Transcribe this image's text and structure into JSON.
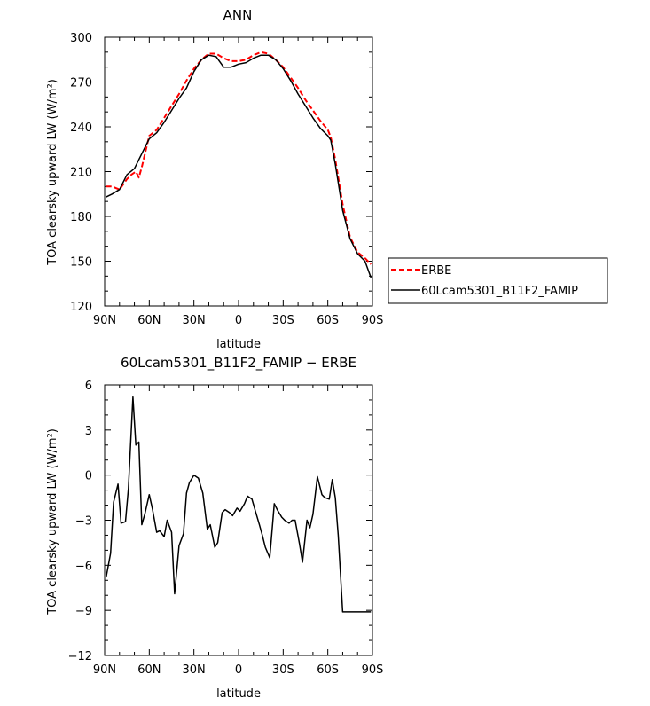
{
  "chart_data": [
    {
      "type": "line",
      "title": "ANN",
      "xlabel": "latitude",
      "ylabel": "TOA clearsky upward LW (W/m²)",
      "xlim": [
        90,
        -90
      ],
      "ylim": [
        120,
        300
      ],
      "xticks": [
        {
          "value": 90,
          "label": "90N"
        },
        {
          "value": 60,
          "label": "60N"
        },
        {
          "value": 30,
          "label": "30N"
        },
        {
          "value": 0,
          "label": "0"
        },
        {
          "value": -30,
          "label": "30S"
        },
        {
          "value": -60,
          "label": "60S"
        },
        {
          "value": -90,
          "label": "90S"
        }
      ],
      "yticks": [
        120,
        150,
        180,
        210,
        240,
        270,
        300
      ],
      "legend_position": "right",
      "series": [
        {
          "name": "ERBE",
          "color": "#ff0000",
          "dash": "dashed",
          "x": [
            89,
            85,
            80,
            75,
            72,
            69,
            67,
            65,
            60,
            55,
            50,
            45,
            40,
            35,
            30,
            25,
            20,
            15,
            10,
            5,
            0,
            -5,
            -10,
            -15,
            -20,
            -25,
            -30,
            -35,
            -40,
            -45,
            -50,
            -55,
            -60,
            -62,
            -65,
            -70,
            -75,
            -80,
            -85,
            -89
          ],
          "y": [
            200,
            200,
            198,
            205,
            208,
            210,
            206,
            213,
            234,
            238,
            246,
            254,
            262,
            271,
            279,
            285,
            289,
            289,
            286,
            284,
            284,
            285,
            288,
            290,
            289,
            285,
            280,
            273,
            266,
            258,
            251,
            244,
            238,
            233,
            218,
            188,
            166,
            156,
            152,
            148
          ]
        },
        {
          "name": "60Lcam5301_B11F2_FAMIP",
          "color": "#000000",
          "dash": "solid",
          "x": [
            89,
            85,
            80,
            75,
            70,
            65,
            60,
            55,
            50,
            45,
            40,
            35,
            30,
            25,
            20,
            15,
            10,
            5,
            0,
            -5,
            -10,
            -15,
            -20,
            -25,
            -30,
            -35,
            -40,
            -45,
            -50,
            -55,
            -60,
            -62,
            -65,
            -70,
            -75,
            -80,
            -85,
            -89
          ],
          "y": [
            193,
            195,
            198,
            208,
            212,
            222,
            232,
            236,
            243,
            251,
            259,
            266,
            277,
            285,
            288,
            287,
            280,
            280,
            282,
            283,
            286,
            288,
            288,
            285,
            279,
            271,
            262,
            254,
            246,
            239,
            234,
            231,
            215,
            184,
            165,
            155,
            150,
            139
          ]
        }
      ]
    },
    {
      "type": "line",
      "title": "60Lcam5301_B11F2_FAMIP − ERBE",
      "xlabel": "latitude",
      "ylabel": "TOA clearsky upward LW (W/m²)",
      "xlim": [
        90,
        -90
      ],
      "ylim": [
        -12,
        6
      ],
      "xticks": [
        {
          "value": 90,
          "label": "90N"
        },
        {
          "value": 60,
          "label": "60N"
        },
        {
          "value": 30,
          "label": "30N"
        },
        {
          "value": 0,
          "label": "0"
        },
        {
          "value": -30,
          "label": "30S"
        },
        {
          "value": -60,
          "label": "60S"
        },
        {
          "value": -90,
          "label": "90S"
        }
      ],
      "yticks": [
        {
          "value": -12,
          "label": "−12"
        },
        {
          "value": -9,
          "label": "−9"
        },
        {
          "value": -6,
          "label": "−6"
        },
        {
          "value": -3,
          "label": "−3"
        },
        {
          "value": 0,
          "label": "0"
        },
        {
          "value": 3,
          "label": "3"
        },
        {
          "value": 6,
          "label": "6"
        }
      ],
      "series": [
        {
          "color": "#000000",
          "dash": "solid",
          "x": [
            89,
            86,
            84,
            81,
            79,
            76,
            74,
            71,
            69,
            67,
            65,
            63,
            60,
            58,
            55,
            53,
            50,
            48,
            45,
            43,
            40,
            37,
            35,
            33,
            30,
            27,
            24,
            21,
            19,
            16,
            14,
            11,
            9,
            6,
            4,
            1,
            -1,
            -4,
            -6,
            -9,
            -11,
            -14,
            -16,
            -18,
            -21,
            -24,
            -26,
            -29,
            -31,
            -34,
            -36,
            -38,
            -41,
            -43,
            -46,
            -48,
            -50,
            -53,
            -56,
            -58,
            -61,
            -63,
            -65,
            -67,
            -70,
            -72,
            -74,
            -77,
            -79,
            -81,
            -84,
            -86,
            -89
          ],
          "y": [
            -6.8,
            -5.2,
            -1.8,
            -0.6,
            -3.2,
            -3.1,
            -0.9,
            5.2,
            2.0,
            2.2,
            -3.3,
            -2.6,
            -1.3,
            -2.2,
            -3.8,
            -3.7,
            -4.1,
            -3.0,
            -3.8,
            -7.9,
            -4.7,
            -3.9,
            -1.2,
            -0.5,
            0.0,
            -0.2,
            -1.2,
            -3.6,
            -3.3,
            -4.8,
            -4.5,
            -2.5,
            -2.3,
            -2.5,
            -2.7,
            -2.2,
            -2.4,
            -1.9,
            -1.4,
            -1.6,
            -2.3,
            -3.3,
            -4.0,
            -4.8,
            -5.5,
            -1.9,
            -2.3,
            -2.8,
            -3.0,
            -3.2,
            -3.0,
            -3.0,
            -4.6,
            -5.8,
            -3.0,
            -3.5,
            -2.6,
            -0.1,
            -1.3,
            -1.5,
            -1.6,
            -0.3,
            -1.5,
            -4.0,
            -9.1,
            -9.1,
            -9.1,
            -9.1,
            -9.1,
            -9.1,
            -9.1,
            -9.1,
            -9.1
          ]
        }
      ]
    }
  ]
}
